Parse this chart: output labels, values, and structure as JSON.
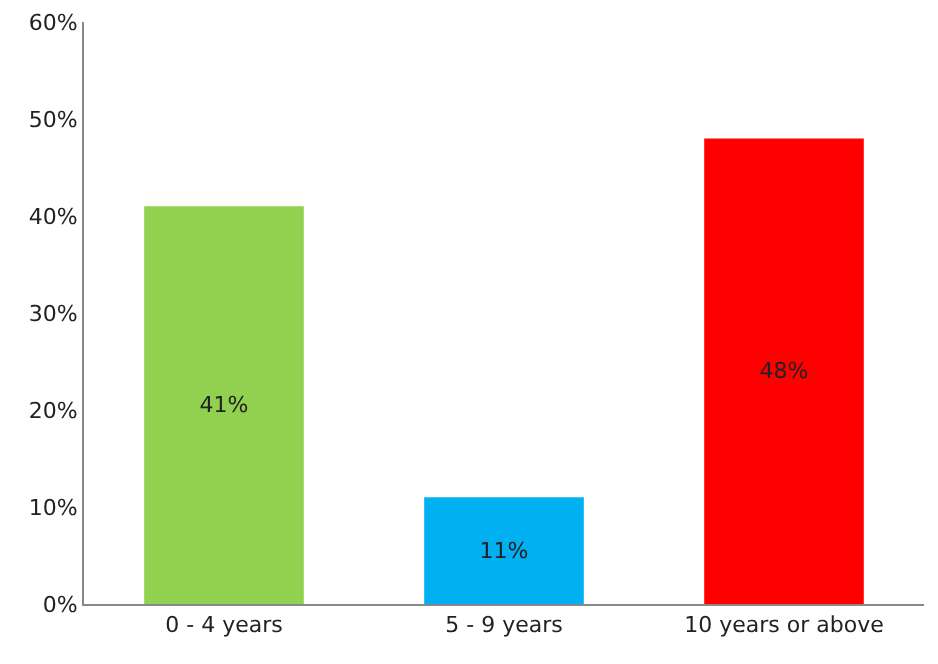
{
  "chart_data": {
    "type": "bar",
    "categories": [
      "0 - 4 years",
      "5 - 9 years",
      "10 years or above"
    ],
    "values": [
      41,
      11,
      48
    ],
    "colors": [
      "#92d050",
      "#00b0f0",
      "#ff0000"
    ],
    "value_labels": [
      "41%",
      "11%",
      "48%"
    ],
    "ylim": [
      0,
      60
    ],
    "yticks": [
      {
        "value": 0,
        "label": "0%"
      },
      {
        "value": 10,
        "label": "10%"
      },
      {
        "value": 20,
        "label": "20%"
      },
      {
        "value": 30,
        "label": "30%"
      },
      {
        "value": 40,
        "label": "40%"
      },
      {
        "value": 50,
        "label": "50%"
      },
      {
        "value": 60,
        "label": "60%"
      }
    ],
    "grid": false,
    "legend": false
  }
}
